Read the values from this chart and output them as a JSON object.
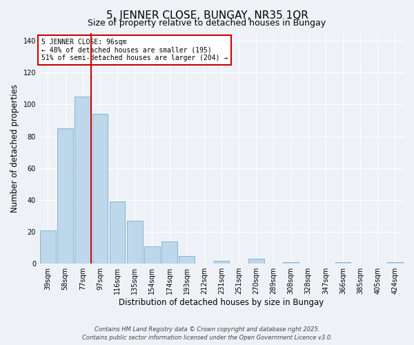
{
  "title": "5, JENNER CLOSE, BUNGAY, NR35 1QR",
  "subtitle": "Size of property relative to detached houses in Bungay",
  "xlabel": "Distribution of detached houses by size in Bungay",
  "ylabel": "Number of detached properties",
  "bar_labels": [
    "39sqm",
    "58sqm",
    "77sqm",
    "97sqm",
    "116sqm",
    "135sqm",
    "154sqm",
    "174sqm",
    "193sqm",
    "212sqm",
    "231sqm",
    "251sqm",
    "270sqm",
    "289sqm",
    "308sqm",
    "328sqm",
    "347sqm",
    "366sqm",
    "385sqm",
    "405sqm",
    "424sqm"
  ],
  "bar_values": [
    21,
    85,
    105,
    94,
    39,
    27,
    11,
    14,
    5,
    0,
    2,
    0,
    3,
    0,
    1,
    0,
    0,
    1,
    0,
    0,
    1
  ],
  "bar_color": "#bfd7ea",
  "bar_edge_color": "#7eb5d4",
  "vline_color": "#cc0000",
  "annotation_title": "5 JENNER CLOSE: 96sqm",
  "annotation_line1": "← 48% of detached houses are smaller (195)",
  "annotation_line2": "51% of semi-detached houses are larger (204) →",
  "annotation_box_color": "#cc0000",
  "ylim": [
    0,
    145
  ],
  "yticks": [
    0,
    20,
    40,
    60,
    80,
    100,
    120,
    140
  ],
  "footer1": "Contains HM Land Registry data © Crown copyright and database right 2025.",
  "footer2": "Contains public sector information licensed under the Open Government Licence v3.0.",
  "bg_color": "#eef2f7",
  "grid_color": "#ffffff",
  "title_fontsize": 11,
  "subtitle_fontsize": 9,
  "axis_label_fontsize": 8.5,
  "tick_fontsize": 7,
  "footer_fontsize": 6
}
